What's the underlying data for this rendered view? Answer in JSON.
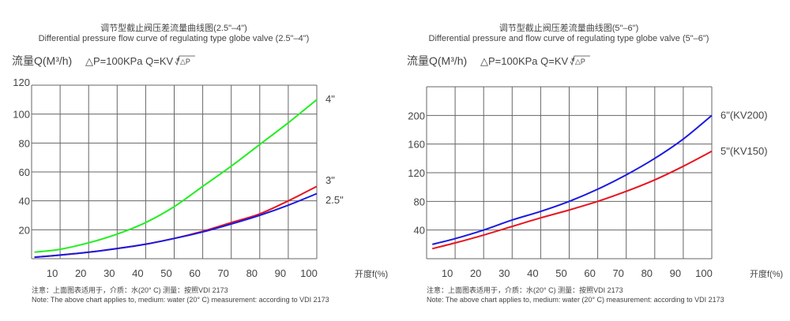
{
  "chart_data": [
    {
      "type": "line",
      "title": "调节型截止阀压差流量曲线图(2.5\"–4\")",
      "subtitle": "Differential pressure flow curve of regulating type globe valve (2.5\"–4\")",
      "ylabel": "流量Q(M³/h)",
      "formula": "△P=100KPa   Q=KV *",
      "formula_sqrt": "△P",
      "xlabel": "开度f(%)",
      "xlim": [
        0,
        100
      ],
      "ylim": [
        0,
        120
      ],
      "xticks": [
        10,
        20,
        30,
        40,
        50,
        60,
        70,
        80,
        90,
        100
      ],
      "yticks": [
        20,
        40,
        60,
        80,
        100,
        120
      ],
      "grid": true,
      "x": [
        1,
        10,
        20,
        30,
        40,
        50,
        60,
        70,
        80,
        90,
        100
      ],
      "series": [
        {
          "name": "4\"",
          "color": "#22ee22",
          "values": [
            4.5,
            6.5,
            11,
            17,
            25,
            36,
            50,
            64,
            79,
            94,
            110
          ]
        },
        {
          "name": "3\"",
          "color": "#e8141e",
          "values": [
            1,
            2.5,
            4.5,
            7,
            10,
            14,
            19,
            25,
            31,
            40,
            50
          ]
        },
        {
          "name": "2.5\"",
          "color": "#1a1ae0",
          "values": [
            1,
            2.5,
            4.5,
            7,
            10,
            14,
            18.5,
            24,
            30,
            37,
            45
          ]
        }
      ],
      "note_cn": "注意：上面图表适用于，介质：水(20°  C)  测量：按照VDI 2173",
      "note_en": "Note: The above chart applies to, medium: water (20°  C) measurement: according to VDI 2173"
    },
    {
      "type": "line",
      "title": "调节型截止阀压差流量曲线图(5\"–6\")",
      "subtitle": "Differential pressure and flow curve of regulating type globe valve (5\"–6\")",
      "ylabel": "流量Q(M³/h)",
      "formula": "△P=100KPa   Q=KV *",
      "formula_sqrt": "△P",
      "xlabel": "开度f(%)",
      "xlim": [
        0,
        100
      ],
      "ylim": [
        0,
        240
      ],
      "xticks": [
        10,
        20,
        30,
        40,
        50,
        60,
        70,
        80,
        90,
        100
      ],
      "yticks": [
        40,
        80,
        120,
        160,
        200
      ],
      "grid": true,
      "x": [
        2,
        10,
        20,
        30,
        40,
        50,
        60,
        70,
        80,
        90,
        100
      ],
      "series": [
        {
          "name": "6\"(KV200)",
          "color": "#1a1ae0",
          "values": [
            20,
            28,
            40,
            54,
            66,
            80,
            97,
            117,
            140,
            167,
            200
          ]
        },
        {
          "name": "5\"(KV150)",
          "color": "#e8141e",
          "values": [
            14,
            22,
            33,
            45,
            57,
            68,
            80,
            94,
            110,
            129,
            150
          ]
        }
      ],
      "note_cn": "注意：上面图表适用于，介质：水(20°  C)  测量：按照VDI 2173",
      "note_en": "Note: The above chart applies to, medium: water (20°  C) measurement: according to VDI 2173"
    }
  ]
}
